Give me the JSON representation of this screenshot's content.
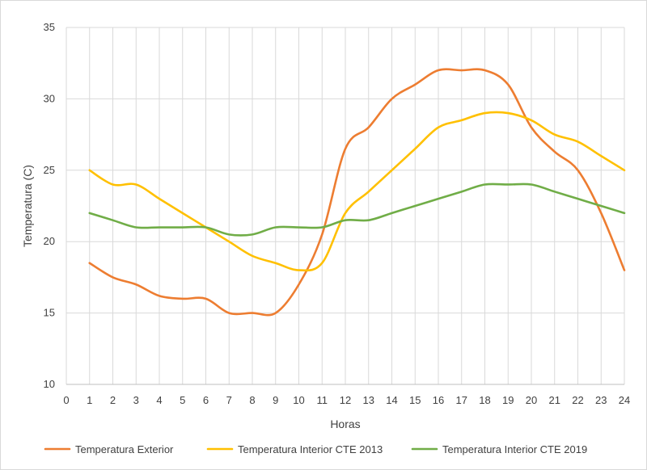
{
  "chart_data": {
    "type": "line",
    "title": "",
    "xlabel": "Horas",
    "ylabel": "Temperatura (C)",
    "xlim": [
      0,
      24
    ],
    "ylim": [
      10,
      35
    ],
    "x_ticks": [
      0,
      1,
      2,
      3,
      4,
      5,
      6,
      7,
      8,
      9,
      10,
      11,
      12,
      13,
      14,
      15,
      16,
      17,
      18,
      19,
      20,
      21,
      22,
      23,
      24
    ],
    "y_ticks": [
      10,
      15,
      20,
      25,
      30,
      35
    ],
    "grid": true,
    "legend_position": "bottom",
    "x": [
      1,
      2,
      3,
      4,
      5,
      6,
      7,
      8,
      9,
      10,
      11,
      12,
      13,
      14,
      15,
      16,
      17,
      18,
      19,
      20,
      21,
      22,
      23,
      24
    ],
    "series": [
      {
        "name": "Temperatura Exterior",
        "color": "#ED7D31",
        "values": [
          18.5,
          17.5,
          17,
          16.2,
          16,
          16,
          15,
          15,
          15,
          17,
          20.5,
          26.5,
          28,
          30,
          31,
          32,
          32,
          32,
          31,
          28,
          26.3,
          25,
          22,
          18
        ]
      },
      {
        "name": "Temperatura Interior CTE 2013",
        "color": "#FFC000",
        "values": [
          25,
          24,
          24,
          23,
          22,
          21,
          20,
          19,
          18.5,
          18,
          18.5,
          22,
          23.5,
          25,
          26.5,
          28,
          28.5,
          29,
          29,
          28.5,
          27.5,
          27,
          26,
          25
        ]
      },
      {
        "name": "Temperatura Interior CTE 2019",
        "color": "#70AD47",
        "values": [
          22,
          21.5,
          21,
          21,
          21,
          21,
          20.5,
          20.5,
          21,
          21,
          21,
          21.5,
          21.5,
          22,
          22.5,
          23,
          23.5,
          24,
          24,
          24,
          23.5,
          23,
          22.5,
          22
        ]
      }
    ]
  }
}
